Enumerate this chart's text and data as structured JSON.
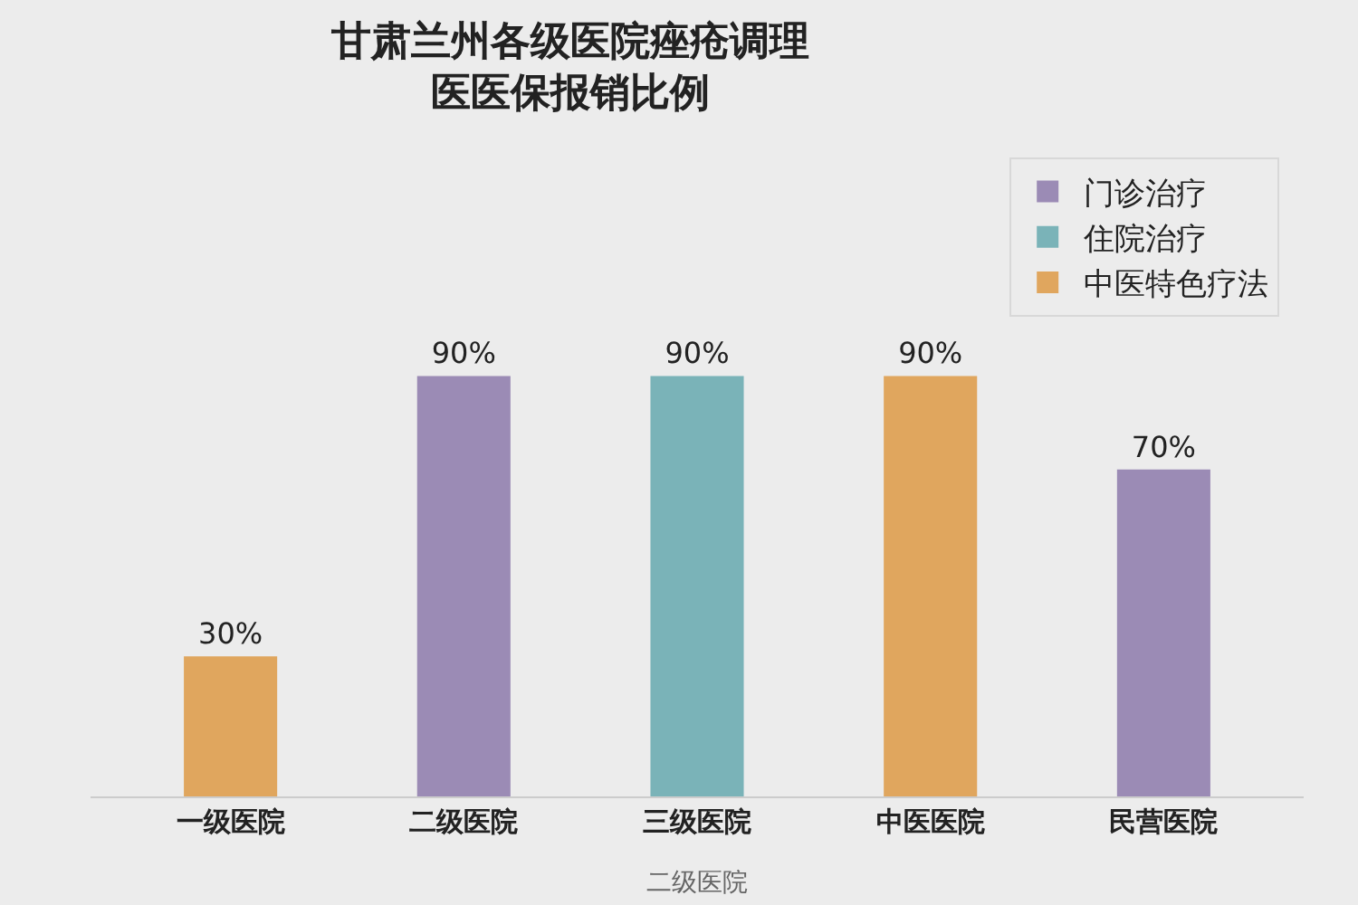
{
  "chart_data": {
    "type": "bar",
    "title": "甘肃兰州各级医院痤疮调理医医保报销比例",
    "xlabel": "二级医院",
    "categories": [
      "一级医院",
      "二级医院",
      "三级医院",
      "中医医院",
      "民营医院"
    ],
    "series": [
      {
        "name": "门诊治疗",
        "color": "#9b8bb5",
        "values": [
          null,
          90,
          null,
          null,
          70
        ],
        "value_labels": [
          null,
          "90%",
          null,
          null,
          "70%"
        ]
      },
      {
        "name": "住院治疗",
        "color": "#7ab3b8",
        "values": [
          null,
          null,
          90,
          null,
          null
        ],
        "value_labels": [
          null,
          null,
          "90%",
          null,
          null
        ]
      },
      {
        "name": "中医特色疗法",
        "color": "#e0a65e",
        "values": [
          30,
          null,
          null,
          90,
          null
        ],
        "value_labels": [
          "30%",
          null,
          null,
          "90%",
          null
        ]
      }
    ],
    "legend": "top right",
    "tick_labels": "x"
  }
}
